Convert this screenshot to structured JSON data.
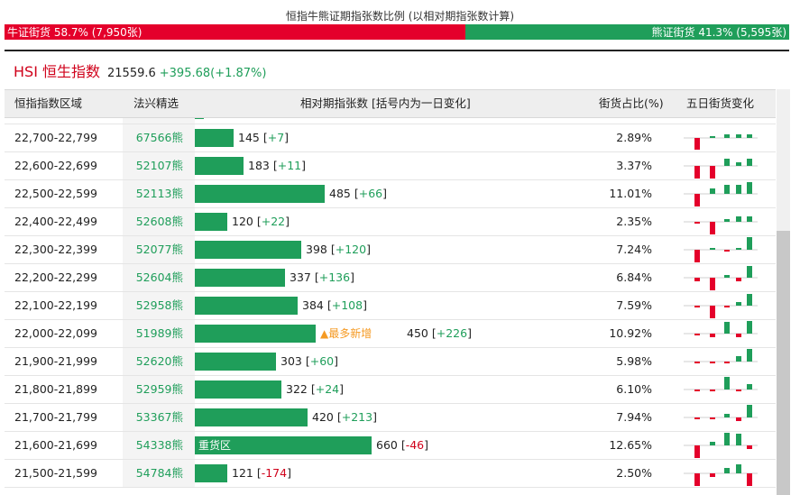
{
  "title": "恒指牛熊证期指张数比例 (以相对期指张数计算)",
  "ratio": {
    "bull_label": "牛证街货 58.7% (7,950张)",
    "bear_label": "熊证街货 41.3% (5,595张)",
    "bull_share": 0.587,
    "bull_color": "#e4002b",
    "bear_color": "#1f9e5a"
  },
  "index": {
    "name": "HSI 恒生指数",
    "price": "21559.6",
    "change": "+395.68(+1.87%)"
  },
  "headers": {
    "range": "恒指指数区域",
    "code": "法兴精选",
    "contracts": "相对期指张数 [括号内为一日变化]",
    "pct": "街货占比(%)",
    "trend": "五日街货变化"
  },
  "max_contracts": 660,
  "rows": [
    {
      "range": "",
      "code": "",
      "contracts": 32,
      "change": "",
      "pct": "",
      "tag": "",
      "partial": true
    },
    {
      "range": "22,700-22,799",
      "code": "67566熊",
      "contracts": 145,
      "change": "+7",
      "pct": "2.89%",
      "tag": "",
      "mini": [
        -0.9,
        0.15,
        0.3,
        0.3,
        0.3
      ]
    },
    {
      "range": "22,600-22,699",
      "code": "52107熊",
      "contracts": 183,
      "change": "+11",
      "pct": "3.37%",
      "tag": "",
      "mini": [
        -1.0,
        -1.0,
        0.55,
        0.3,
        0.55
      ]
    },
    {
      "range": "22,500-22,599",
      "code": "52113熊",
      "contracts": 485,
      "change": "+66",
      "pct": "11.01%",
      "tag": "",
      "mini": [
        -1.0,
        0.4,
        0.7,
        0.7,
        0.9
      ]
    },
    {
      "range": "22,400-22,499",
      "code": "52608熊",
      "contracts": 120,
      "change": "+22",
      "pct": "2.35%",
      "tag": "",
      "mini": [
        -0.1,
        -1.0,
        0.2,
        0.45,
        0.45
      ]
    },
    {
      "range": "22,300-22,399",
      "code": "52077熊",
      "contracts": 398,
      "change": "+120",
      "pct": "7.24%",
      "tag": "",
      "mini": [
        -1.0,
        0.15,
        -0.1,
        0.15,
        1.0
      ]
    },
    {
      "range": "22,200-22,299",
      "code": "52604熊",
      "contracts": 337,
      "change": "+136",
      "pct": "6.84%",
      "tag": "",
      "mini": [
        -0.3,
        -1.0,
        0.2,
        -0.3,
        0.9
      ]
    },
    {
      "range": "22,100-22,199",
      "code": "52958熊",
      "contracts": 384,
      "change": "+108",
      "pct": "7.59%",
      "tag": "",
      "mini": [
        -0.1,
        -1.0,
        -0.15,
        0.3,
        0.9
      ]
    },
    {
      "range": "22,000-22,099",
      "code": "51989熊",
      "contracts": 450,
      "change": "+226",
      "pct": "10.92%",
      "tag": "▲最多新增",
      "mini": [
        -0.1,
        -0.3,
        0.9,
        -0.3,
        1.0
      ]
    },
    {
      "range": "21,900-21,999",
      "code": "52620熊",
      "contracts": 303,
      "change": "+60",
      "pct": "5.98%",
      "tag": "",
      "mini": [
        -0.1,
        -0.15,
        -0.15,
        0.4,
        1.0
      ]
    },
    {
      "range": "21,800-21,899",
      "code": "52959熊",
      "contracts": 322,
      "change": "+24",
      "pct": "6.10%",
      "tag": "",
      "mini": [
        -0.1,
        -0.1,
        1.0,
        -0.1,
        0.4
      ]
    },
    {
      "range": "21,700-21,799",
      "code": "53367熊",
      "contracts": 420,
      "change": "+213",
      "pct": "7.94%",
      "tag": "",
      "mini": [
        -0.1,
        -0.1,
        0.3,
        -0.3,
        1.0
      ]
    },
    {
      "range": "21,600-21,699",
      "code": "54338熊",
      "contracts": 660,
      "change": "-46",
      "pct": "12.65%",
      "tag": "重货区",
      "mini": [
        -1.0,
        0.25,
        1.0,
        0.9,
        -0.3
      ]
    },
    {
      "range": "21,500-21,599",
      "code": "54784熊",
      "contracts": 121,
      "change": "-174",
      "pct": "2.50%",
      "tag": "",
      "mini": [
        -1.0,
        -0.3,
        0.45,
        0.7,
        -1.0
      ]
    }
  ]
}
